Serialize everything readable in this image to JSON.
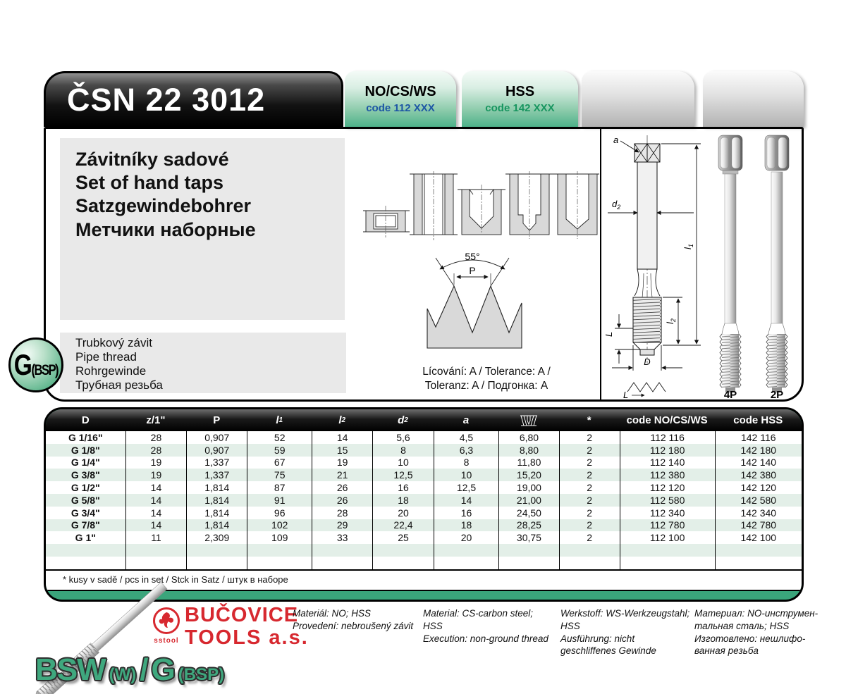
{
  "header": {
    "standard": "ČSN 22 3012",
    "tabs": [
      {
        "label": "NO/CS/WS",
        "code": "code 112 XXX"
      },
      {
        "label": "HSS",
        "code": "code 142 XXX"
      }
    ]
  },
  "product": {
    "titles": [
      "Závitníky sadové",
      "Set of hand taps",
      "Satzgewindebohrer",
      "Метчики наборные"
    ],
    "badge_main": "G",
    "badge_sub": "(BSP)",
    "thread_type": [
      "Trubkový závit",
      "Pipe thread",
      "Rohrgewinde",
      "Трубная резьба"
    ],
    "tolerance": [
      "Lícování: A / Tolerance: A /",
      "Toleranz: A / Подгонка: A"
    ]
  },
  "diagram": {
    "angle": "55°",
    "pitch": "P",
    "a": "a",
    "d2": {
      "main": "d",
      "sub": "2"
    },
    "l1": {
      "main": "l",
      "sub": "1"
    },
    "l2": {
      "main": "l",
      "sub": "2"
    },
    "L": "L",
    "D": "D",
    "detail_L": "L",
    "tap_variants": [
      "4P",
      "2P"
    ]
  },
  "table": {
    "columns": [
      {
        "label": "D"
      },
      {
        "label": "z/1\""
      },
      {
        "label": "P"
      },
      {
        "label": "l",
        "sub": "1",
        "italic": true
      },
      {
        "label": "l",
        "sub": "2",
        "italic": true
      },
      {
        "label": "d",
        "sub": "2",
        "italic": true
      },
      {
        "label": "a",
        "italic": true
      },
      {
        "label": "",
        "icon": "tapped-hole-icon"
      },
      {
        "label": "*"
      },
      {
        "label": "code NO/CS/WS"
      },
      {
        "label": "code HSS"
      }
    ],
    "rows": [
      [
        "G 1/16\"",
        "28",
        "0,907",
        "52",
        "14",
        "5,6",
        "4,5",
        "6,80",
        "2",
        "112 116",
        "142 116"
      ],
      [
        "G 1/8\"",
        "28",
        "0,907",
        "59",
        "15",
        "8",
        "6,3",
        "8,80",
        "2",
        "112 180",
        "142 180"
      ],
      [
        "G 1/4\"",
        "19",
        "1,337",
        "67",
        "19",
        "10",
        "8",
        "11,80",
        "2",
        "112 140",
        "142 140"
      ],
      [
        "G 3/8\"",
        "19",
        "1,337",
        "75",
        "21",
        "12,5",
        "10",
        "15,20",
        "2",
        "112 380",
        "142 380"
      ],
      [
        "G 1/2\"",
        "14",
        "1,814",
        "87",
        "26",
        "16",
        "12,5",
        "19,00",
        "2",
        "112 120",
        "142 120"
      ],
      [
        "G 5/8\"",
        "14",
        "1,814",
        "91",
        "26",
        "18",
        "14",
        "21,00",
        "2",
        "112 580",
        "142 580"
      ],
      [
        "G 3/4\"",
        "14",
        "1,814",
        "96",
        "28",
        "20",
        "16",
        "24,50",
        "2",
        "112 340",
        "142 340"
      ],
      [
        "G 7/8\"",
        "14",
        "1,814",
        "102",
        "29",
        "22,4",
        "18",
        "28,25",
        "2",
        "112 780",
        "142 780"
      ],
      [
        "G 1\"",
        "11",
        "2,309",
        "109",
        "33",
        "25",
        "20",
        "30,75",
        "2",
        "112 100",
        "142 100"
      ]
    ],
    "empty_rows": 2,
    "footnote": "* kusy v sadě / pcs in set / Stck in Satz / штук в наборе"
  },
  "footer": {
    "brand_line1": "BUČOVICE",
    "brand_line2": "TOOLS a.s.",
    "emblem_caption": "sstool",
    "notes": [
      [
        "Materiál: NO; HSS",
        "Provedení: nebroušený závit"
      ],
      [
        "Material: CS-carbon steel;",
        "HSS",
        "Execution: non-ground thread"
      ],
      [
        "Werkstoff: WS-Werkzeugstahl;",
        "HSS",
        "Ausführung: nicht",
        "geschliffenes Gewinde"
      ],
      [
        "Материал: NO-инструмен-",
        "тальная сталь; HSS",
        "Изготовлено: нешлифо-",
        "ванная резьба"
      ]
    ],
    "page_label": [
      {
        "text": "BSW"
      },
      {
        "text": "(W)"
      },
      {
        "text": "/"
      },
      {
        "text": "G"
      },
      {
        "text": "(BSP)"
      }
    ]
  },
  "colors": {
    "accent_green": "#3aa57b",
    "stripe_green": "#e3efe8",
    "code_blue": "#1c55a5",
    "code_green": "#17955f",
    "brand_red": "#d7282f"
  }
}
